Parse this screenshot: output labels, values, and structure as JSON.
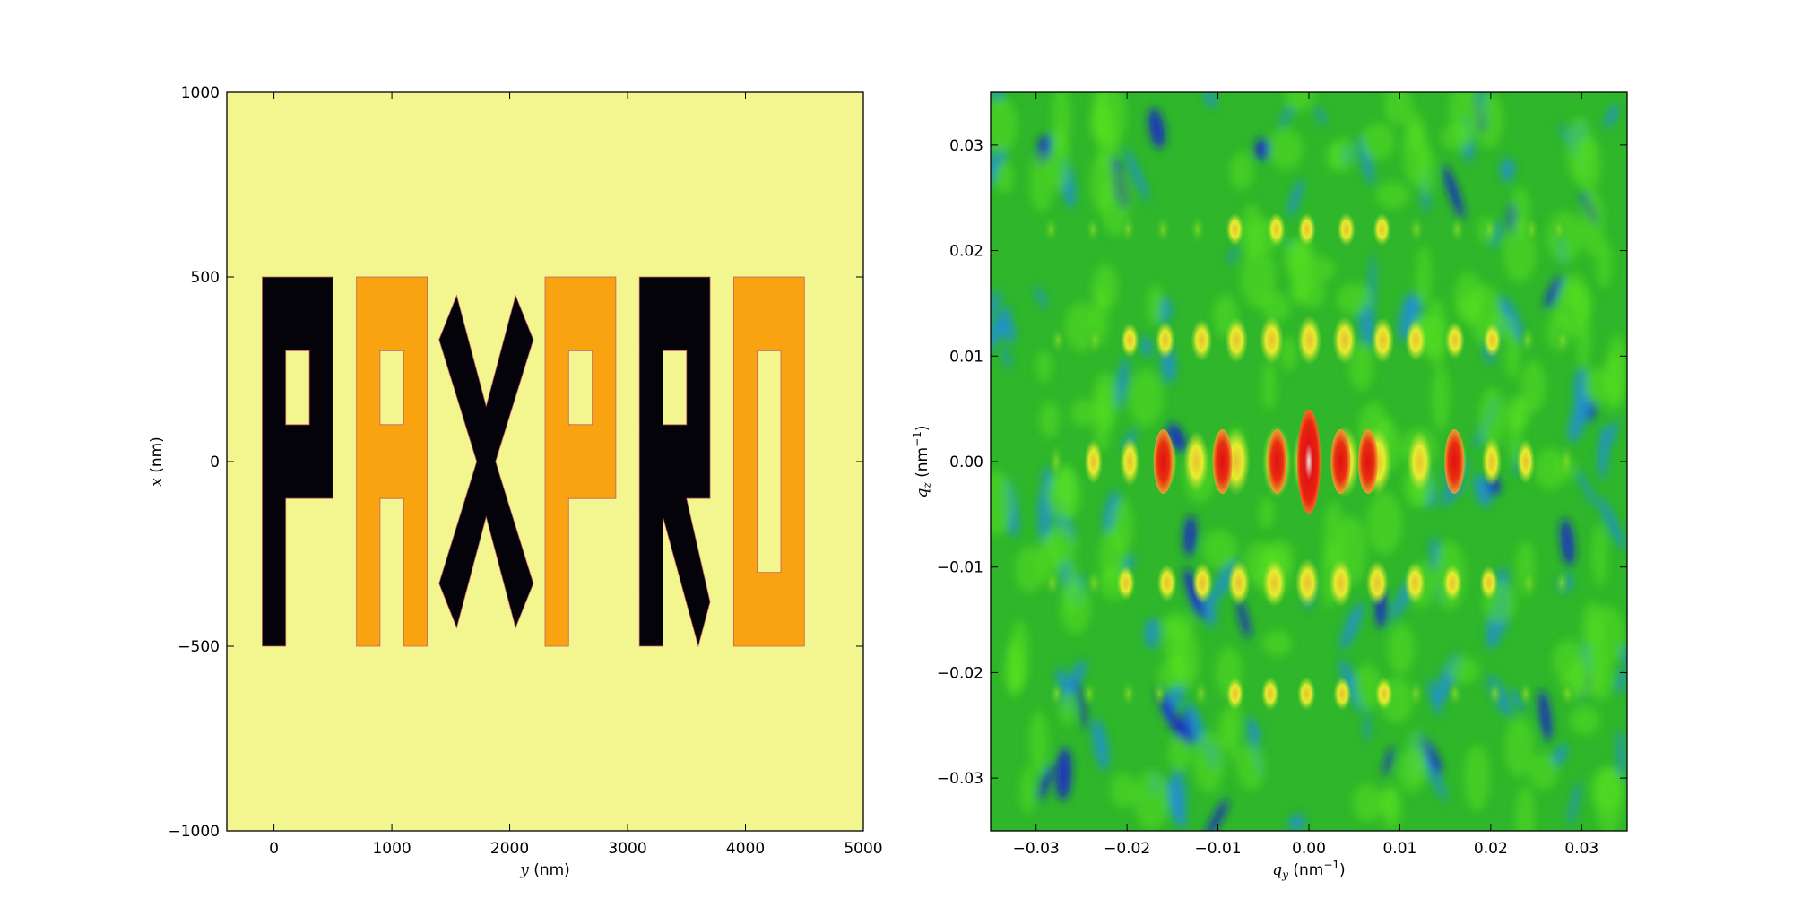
{
  "chart_data": [
    {
      "type": "heatmap",
      "title": "",
      "xlabel_var": "y",
      "xlabel_unit": " (nm)",
      "ylabel_var": "x",
      "ylabel_unit": " (nm)",
      "xlim": [
        -400,
        5000
      ],
      "ylim": [
        -1000,
        1000
      ],
      "x_ticks": [
        0,
        1000,
        2000,
        3000,
        4000,
        5000
      ],
      "y_ticks": [
        1000,
        500,
        0,
        -500,
        -1000
      ],
      "x_tick_labels": [
        "0",
        "1000",
        "2000",
        "3000",
        "4000",
        "5000"
      ],
      "y_tick_labels": [
        "1000",
        "500",
        "0",
        "−500",
        "−1000"
      ],
      "background_color": "#f3f58f",
      "letters": [
        {
          "letter": "P",
          "color": "#04030a",
          "y_range": [
            -100,
            500
          ],
          "x_range": [
            -500,
            500
          ]
        },
        {
          "letter": "A",
          "color": "#f8a30f",
          "y_range": [
            700,
            1300
          ],
          "x_range": [
            -500,
            500
          ]
        },
        {
          "letter": "X",
          "color": "#04030a",
          "y_range": [
            1400,
            2200
          ],
          "x_range": [
            -450,
            450
          ]
        },
        {
          "letter": "P",
          "color": "#f8a30f",
          "y_range": [
            2300,
            2900
          ],
          "x_range": [
            -500,
            500
          ]
        },
        {
          "letter": "R",
          "color": "#04030a",
          "y_range": [
            3100,
            3700
          ],
          "x_range": [
            -500,
            500
          ]
        },
        {
          "letter": "O",
          "color": "#f8a30f",
          "y_range": [
            3900,
            4500
          ],
          "x_range": [
            -500,
            500
          ]
        }
      ],
      "grid": false
    },
    {
      "type": "heatmap",
      "title": "",
      "xlabel_var": "q",
      "xlabel_sub": "y",
      "xlabel_unit": " (nm",
      "xlabel_sup": "−1",
      "xlabel_close": ")",
      "ylabel_var": "q",
      "ylabel_sub": "z",
      "ylabel_unit": " (nm",
      "ylabel_sup": "−1",
      "ylabel_close": ")",
      "xlim": [
        -0.035,
        0.035
      ],
      "ylim": [
        -0.035,
        0.035
      ],
      "x_ticks": [
        -0.03,
        -0.02,
        -0.01,
        0.0,
        0.01,
        0.02,
        0.03
      ],
      "y_ticks": [
        0.03,
        0.02,
        0.01,
        0.0,
        -0.01,
        -0.02,
        -0.03
      ],
      "x_tick_labels": [
        "−0.03",
        "−0.02",
        "−0.01",
        "0.00",
        "0.01",
        "0.02",
        "0.03"
      ],
      "y_tick_labels": [
        "0.03",
        "0.02",
        "0.01",
        "0.00",
        "−0.01",
        "−0.02",
        "−0.03"
      ],
      "colormap": [
        "#1a1ad8",
        "#2090d0",
        "#1fb81f",
        "#58e020",
        "#f0f030",
        "#f09020",
        "#e01010",
        "#d8d8d8"
      ],
      "grid": false
    }
  ]
}
